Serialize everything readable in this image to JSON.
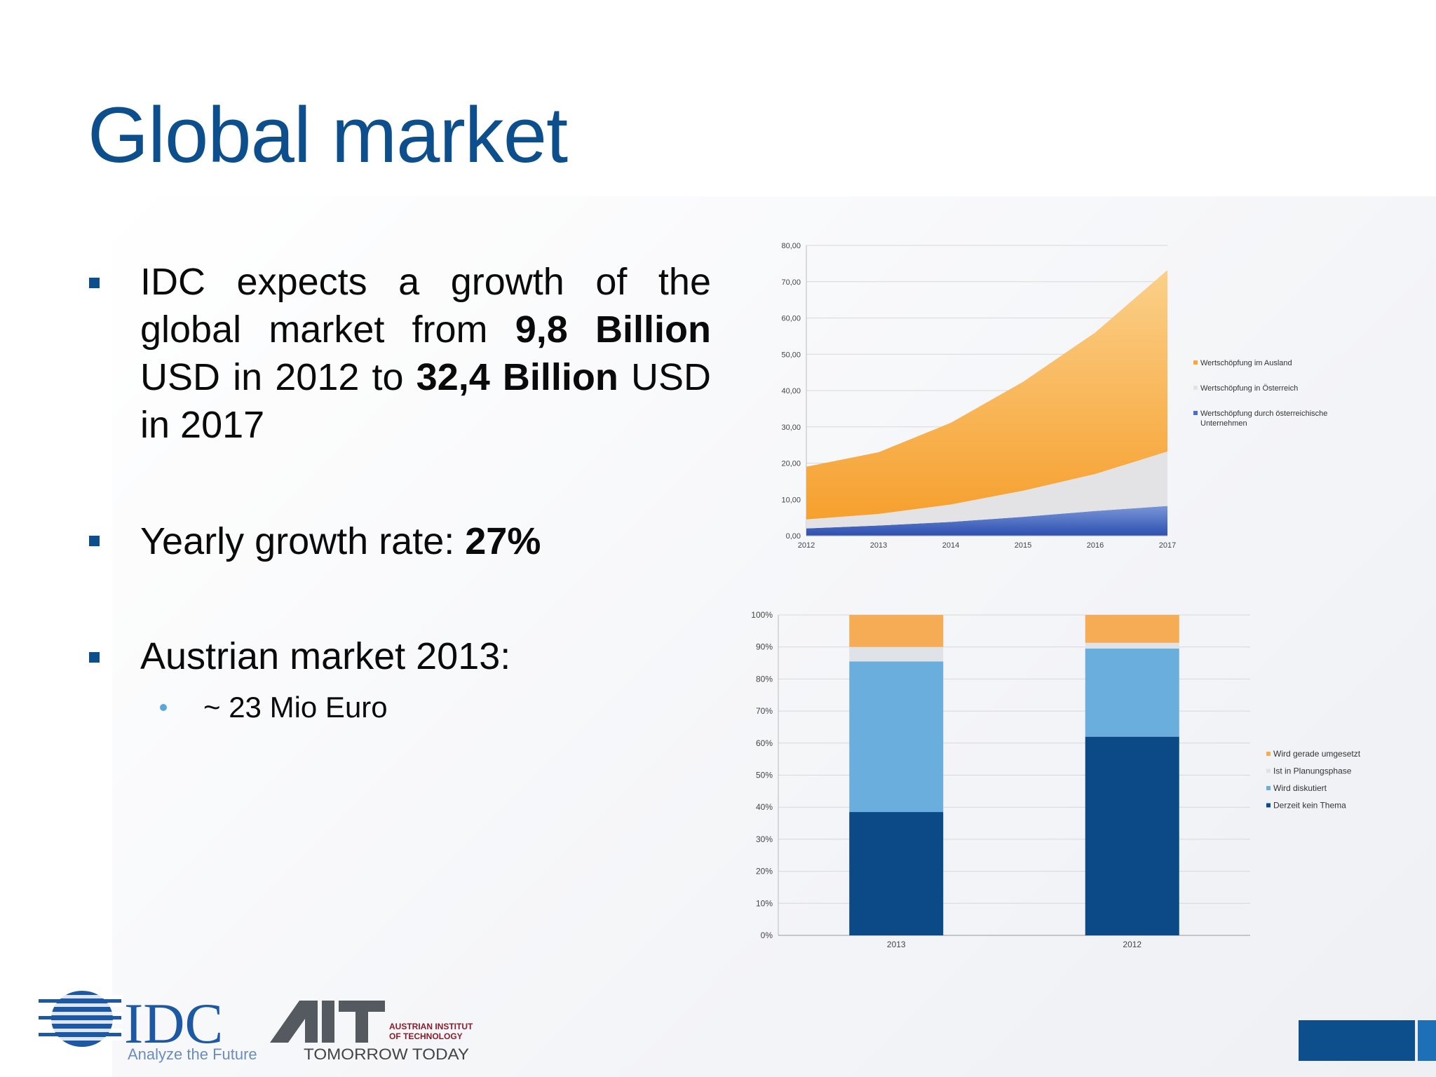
{
  "slide": {
    "title": "Global market",
    "bullets": [
      {
        "parts": [
          {
            "text": "IDC expects a growth of the global market from ",
            "bold": false
          },
          {
            "text": "9,8 Billion",
            "bold": true
          },
          {
            "text": " USD in 2012 to ",
            "bold": false
          },
          {
            "text": "32,4 Billion",
            "bold": true
          },
          {
            "text": " USD in 2017",
            "bold": false
          }
        ]
      },
      {
        "parts": [
          {
            "text": "Yearly growth rate: ",
            "bold": false
          },
          {
            "text": "27%",
            "bold": true
          }
        ]
      },
      {
        "parts": [
          {
            "text": "Austrian market 2013:",
            "bold": false
          }
        ],
        "sub": "~ 23 Mio Euro"
      }
    ],
    "colors": {
      "title": "#0c4f8c",
      "bullet": "#0c4f8c",
      "sub_bullet": "#5aa8d9"
    }
  },
  "logos": {
    "idc": {
      "name": "IDC",
      "tagline": "Analyze the Future"
    },
    "ait": {
      "name": "AIT",
      "line1": "AUSTRIAN INSTITUTE",
      "line2": "OF TECHNOLOGY",
      "tagline": "TOMORROW TODAY"
    }
  },
  "chart_data": [
    {
      "type": "area",
      "stacked": true,
      "x": [
        "2012",
        "2013",
        "2014",
        "2015",
        "2016",
        "2017"
      ],
      "y_ticks": [
        "0,00",
        "10,00",
        "20,00",
        "30,00",
        "40,00",
        "50,00",
        "60,00",
        "70,00",
        "80,00"
      ],
      "ylim": [
        0,
        80
      ],
      "grid": true,
      "legend_position": "right",
      "series": [
        {
          "name": "Wertschöpfung durch österreichische Unternehmen",
          "values": [
            2,
            2.8,
            3.8,
            5.2,
            6.8,
            8.2
          ],
          "color": "#4a6fc4"
        },
        {
          "name": "Wertschöpfung in Österreich",
          "values": [
            2.5,
            3.2,
            4.8,
            7.2,
            10.2,
            15
          ],
          "color": "#e3e3e6"
        },
        {
          "name": "Wertschöpfung im Ausland",
          "values": [
            14.5,
            17,
            22.5,
            30,
            39,
            50
          ],
          "color": "#f8a83c"
        }
      ],
      "legend_order": [
        2,
        1,
        0
      ]
    },
    {
      "type": "bar",
      "stacked": true,
      "categories": [
        "2013",
        "2012"
      ],
      "y_ticks": [
        "0%",
        "10%",
        "20%",
        "30%",
        "40%",
        "50%",
        "60%",
        "70%",
        "80%",
        "90%",
        "100%"
      ],
      "ylim": [
        0,
        100
      ],
      "grid": true,
      "legend_position": "right",
      "series": [
        {
          "name": "Derzeit kein Thema",
          "values": [
            38.5,
            62
          ],
          "color": "#0b4a86"
        },
        {
          "name": "Wird diskutiert",
          "values": [
            47,
            27.5
          ],
          "color": "#6aaedd"
        },
        {
          "name": "Ist in Planungsphase",
          "values": [
            4.5,
            1.8
          ],
          "color": "#dfe3e8"
        },
        {
          "name": "Wird gerade umgesetzt",
          "values": [
            10,
            8.7
          ],
          "color": "#f6ac55"
        }
      ],
      "legend_order": [
        3,
        2,
        1,
        0
      ]
    }
  ]
}
